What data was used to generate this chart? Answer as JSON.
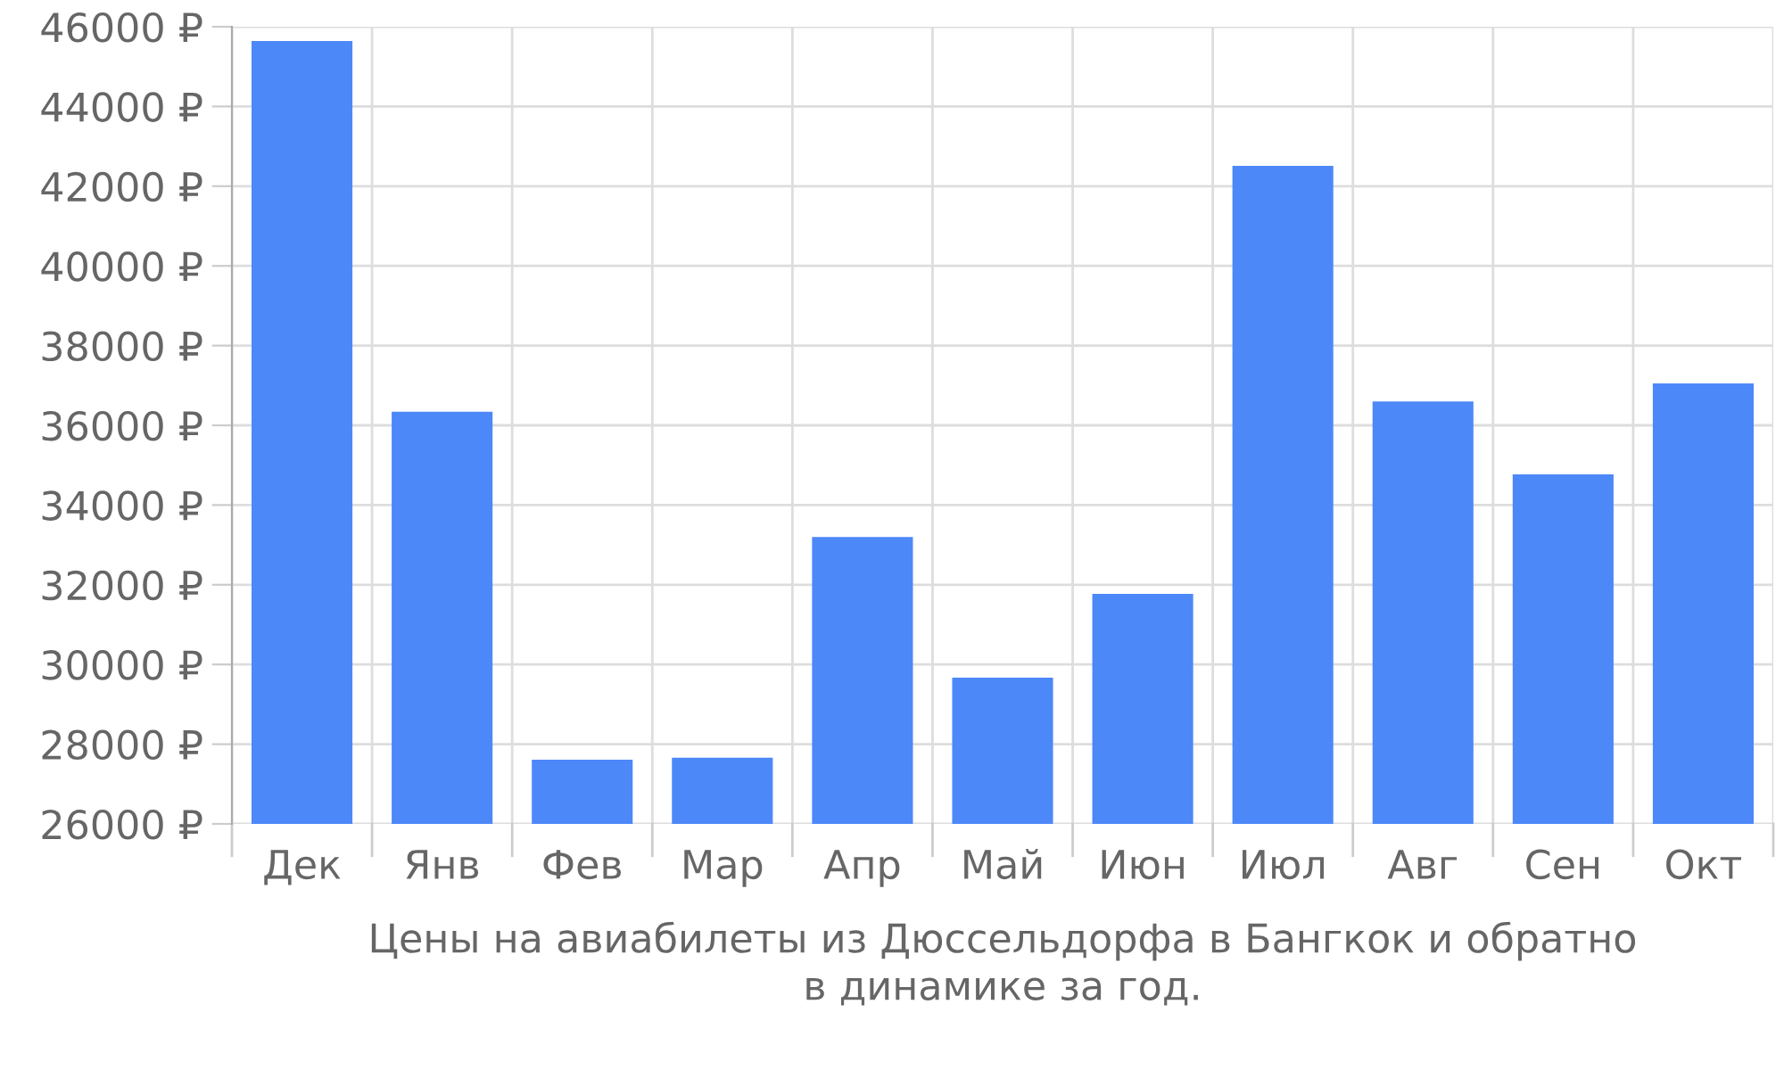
{
  "chart_data": {
    "type": "bar",
    "xlabel": "Цены на авиабилеты из Дюссельдорфа в Бангкок и обратно\nв динамике за год.",
    "categories": [
      "Дек",
      "Янв",
      "Фев",
      "Мар",
      "Апр",
      "Май",
      "Июн",
      "Июл",
      "Авг",
      "Сен",
      "Окт"
    ],
    "values": [
      45640,
      36340,
      27610,
      27660,
      33200,
      29670,
      31770,
      42510,
      36600,
      34770,
      37050
    ],
    "color": "#4d88f9",
    "ylim": [
      26000,
      46000
    ],
    "yticks": [
      {
        "value": 26000,
        "label": "26000 ₽"
      },
      {
        "value": 28000,
        "label": "28000 ₽"
      },
      {
        "value": 30000,
        "label": "30000 ₽"
      },
      {
        "value": 32000,
        "label": "32000 ₽"
      },
      {
        "value": 34000,
        "label": "34000 ₽"
      },
      {
        "value": 36000,
        "label": "36000 ₽"
      },
      {
        "value": 38000,
        "label": "38000 ₽"
      },
      {
        "value": 40000,
        "label": "40000 ₽"
      },
      {
        "value": 42000,
        "label": "42000 ₽"
      },
      {
        "value": 44000,
        "label": "44000 ₽"
      },
      {
        "value": 46000,
        "label": "46000 ₽"
      }
    ],
    "grid": true
  }
}
